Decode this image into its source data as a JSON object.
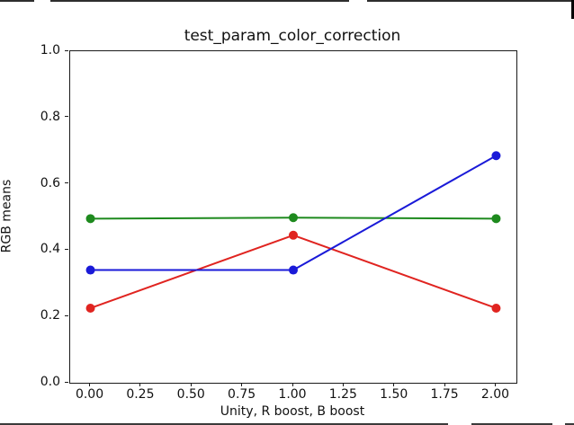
{
  "chart_data": {
    "type": "line",
    "title": "test_param_color_correction",
    "xlabel": "Unity, R boost, B boost",
    "ylabel": "RGB means",
    "x": [
      0,
      1,
      2
    ],
    "series": [
      {
        "name": "red",
        "color": "#e02420",
        "values": [
          0.225,
          0.445,
          0.225
        ]
      },
      {
        "name": "green",
        "color": "#1e8a1e",
        "values": [
          0.495,
          0.498,
          0.495
        ]
      },
      {
        "name": "blue",
        "color": "#1a1ad8",
        "values": [
          0.34,
          0.34,
          0.685
        ]
      }
    ],
    "xlim": [
      -0.1,
      2.1
    ],
    "ylim": [
      0,
      1
    ],
    "x_tick_values": [
      0.0,
      0.25,
      0.5,
      0.75,
      1.0,
      1.25,
      1.5,
      1.75,
      2.0
    ],
    "x_tick_labels": [
      "0.00",
      "0.25",
      "0.50",
      "0.75",
      "1.00",
      "1.25",
      "1.50",
      "1.75",
      "2.00"
    ],
    "y_tick_values": [
      0.0,
      0.2,
      0.4,
      0.6,
      0.8,
      1.0
    ],
    "y_tick_labels": [
      "0.0",
      "0.2",
      "0.4",
      "0.6",
      "0.8",
      "1.0"
    ],
    "grid": false,
    "legend": "none",
    "marker": "circle",
    "line_width": 2,
    "marker_radius": 5,
    "axis_color": "#1a1a1a",
    "background_color": "#ffffff"
  }
}
